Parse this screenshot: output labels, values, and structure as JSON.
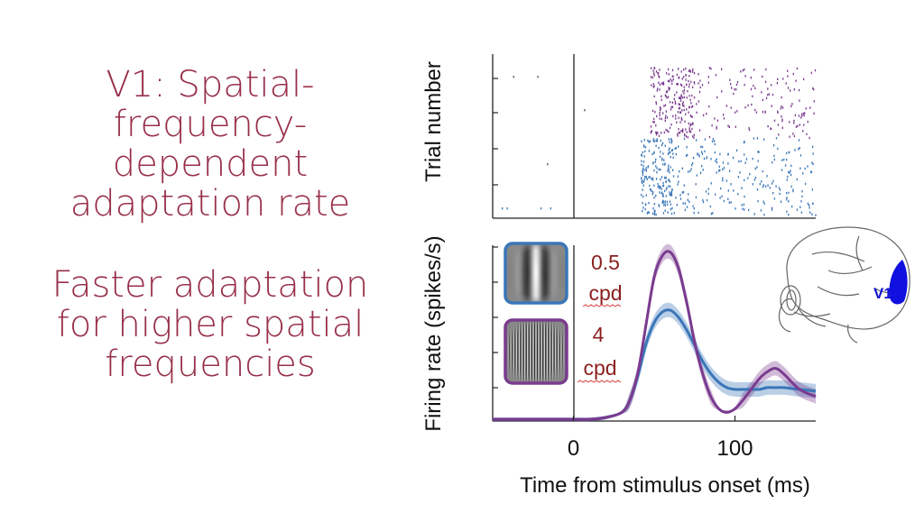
{
  "title_lines": [
    "V1: Spatial-",
    "frequency-",
    "dependent",
    "adaptation rate"
  ],
  "subtitle_lines": [
    "Faster adaptation",
    "for higher spatial",
    "frequencies"
  ],
  "colors": {
    "title": "#98304a",
    "low_sf": "#3a76b8",
    "high_sf": "#7a3b8f",
    "cpd_text": "#8a2020",
    "v1_area": "#1010e0"
  },
  "stimuli": [
    {
      "freq": "0.5",
      "unit": "cpd",
      "frame_color": "#3a76b8",
      "icon": "low-frequency-grating-icon"
    },
    {
      "freq": "4",
      "unit": "cpd",
      "frame_color": "#7a3b8f",
      "icon": "high-frequency-grating-icon"
    }
  ],
  "brain": {
    "label": "V1",
    "icon": "monkey-brain-icon"
  },
  "chart_data": [
    {
      "type": "scatter",
      "subtype": "raster",
      "ylabel": "Trial number",
      "xlim": [
        -50,
        150
      ],
      "x_ticks": [],
      "series": [
        {
          "name": "",
          "color": "#7a3b8f",
          "trials": "upper half",
          "response_windows_ms": [
            [
              48,
              75
            ],
            [
              95,
              150
            ]
          ]
        },
        {
          "name": "",
          "color": "#3a76b8",
          "trials": "lower half",
          "response_windows_ms": [
            [
              42,
              150
            ]
          ]
        }
      ],
      "sparse_spikes_before_onset_ms": [
        -37,
        -22,
        -16,
        -20,
        7
      ]
    },
    {
      "type": "line",
      "xlabel": "Time from stimulus onset (ms)",
      "ylabel": "Firing rate (spikes/s)",
      "xlim": [
        -50,
        150
      ],
      "x_ticks": [
        0,
        100
      ],
      "ylim": [
        0,
        1
      ],
      "y_ticks_count": 5,
      "series": [
        {
          "name": "",
          "color": "#3a76b8",
          "x": [
            -50,
            -30,
            -10,
            0,
            10,
            20,
            30,
            35,
            40,
            45,
            50,
            55,
            60,
            65,
            70,
            75,
            80,
            85,
            90,
            95,
            100,
            105,
            110,
            115,
            120,
            125,
            130,
            140,
            150
          ],
          "y": [
            0.01,
            0.01,
            0.01,
            0.01,
            0.01,
            0.02,
            0.05,
            0.12,
            0.26,
            0.44,
            0.56,
            0.62,
            0.63,
            0.59,
            0.52,
            0.43,
            0.34,
            0.27,
            0.22,
            0.19,
            0.18,
            0.18,
            0.18,
            0.18,
            0.19,
            0.19,
            0.19,
            0.18,
            0.17
          ]
        },
        {
          "name": "",
          "color": "#7a3b8f",
          "x": [
            -50,
            -30,
            -10,
            0,
            10,
            20,
            30,
            35,
            40,
            45,
            50,
            55,
            60,
            65,
            70,
            75,
            80,
            85,
            90,
            95,
            100,
            105,
            110,
            115,
            120,
            125,
            130,
            140,
            150
          ],
          "y": [
            0.01,
            0.01,
            0.01,
            0.01,
            0.01,
            0.02,
            0.05,
            0.12,
            0.28,
            0.55,
            0.82,
            0.94,
            0.96,
            0.87,
            0.68,
            0.45,
            0.27,
            0.14,
            0.07,
            0.05,
            0.07,
            0.12,
            0.18,
            0.24,
            0.28,
            0.3,
            0.27,
            0.18,
            0.14
          ]
        }
      ]
    }
  ]
}
